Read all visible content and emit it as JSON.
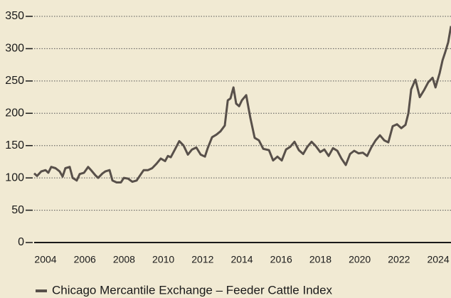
{
  "chart_data": {
    "type": "line",
    "x": [
      2003.42,
      2003.57,
      2003.78,
      2004.0,
      2004.14,
      2004.29,
      2004.51,
      2004.72,
      2004.87,
      2005.01,
      2005.23,
      2005.38,
      2005.59,
      2005.74,
      2005.96,
      2006.17,
      2006.32,
      2006.54,
      2006.68,
      2006.9,
      2007.04,
      2007.26,
      2007.41,
      2007.62,
      2007.84,
      2007.99,
      2008.2,
      2008.42,
      2008.64,
      2008.86,
      2009.0,
      2009.22,
      2009.43,
      2009.65,
      2009.87,
      2010.09,
      2010.23,
      2010.38,
      2010.59,
      2010.81,
      2011.03,
      2011.25,
      2011.46,
      2011.68,
      2011.9,
      2012.12,
      2012.26,
      2012.48,
      2012.7,
      2012.91,
      2013.13,
      2013.28,
      2013.42,
      2013.57,
      2013.71,
      2013.86,
      2014.0,
      2014.22,
      2014.43,
      2014.65,
      2014.87,
      2015.09,
      2015.38,
      2015.59,
      2015.81,
      2016.03,
      2016.25,
      2016.46,
      2016.68,
      2016.9,
      2017.12,
      2017.33,
      2017.55,
      2017.77,
      2017.99,
      2018.2,
      2018.42,
      2018.64,
      2018.86,
      2019.07,
      2019.29,
      2019.51,
      2019.72,
      2019.94,
      2020.16,
      2020.38,
      2020.59,
      2020.81,
      2021.03,
      2021.25,
      2021.46,
      2021.68,
      2021.9,
      2022.12,
      2022.33,
      2022.48,
      2022.62,
      2022.84,
      2023.06,
      2023.28,
      2023.49,
      2023.71,
      2023.86,
      2024.07,
      2024.22,
      2024.36,
      2024.51,
      2024.65
    ],
    "series": [
      {
        "name": "Chicago Mercantile Exchange – Feeder Cattle Index",
        "color": "#58504a",
        "values": [
          107,
          103,
          110,
          112,
          108,
          117,
          115,
          110,
          102,
          115,
          117,
          100,
          96,
          106,
          108,
          117,
          112,
          104,
          100,
          107,
          110,
          112,
          96,
          93,
          93,
          100,
          99,
          94,
          96,
          106,
          112,
          112,
          115,
          122,
          130,
          126,
          134,
          132,
          144,
          157,
          150,
          136,
          144,
          147,
          136,
          133,
          146,
          163,
          167,
          172,
          181,
          220,
          223,
          240,
          215,
          211,
          220,
          228,
          193,
          162,
          158,
          145,
          143,
          127,
          133,
          127,
          144,
          148,
          156,
          143,
          137,
          148,
          156,
          149,
          140,
          144,
          134,
          146,
          142,
          130,
          120,
          137,
          142,
          138,
          139,
          134,
          147,
          158,
          166,
          158,
          155,
          180,
          183,
          177,
          182,
          200,
          237,
          252,
          225,
          236,
          248,
          255,
          240,
          262,
          282,
          295,
          310,
          335
        ]
      }
    ],
    "xlim": [
      2003.42,
      2024.65
    ],
    "xticks": [
      2004,
      2006,
      2008,
      2010,
      2012,
      2014,
      2016,
      2018,
      2020,
      2022,
      2024
    ],
    "ylim": [
      0,
      350
    ],
    "yticks": [
      0,
      50,
      100,
      150,
      200,
      250,
      300,
      350
    ],
    "grid": true
  }
}
